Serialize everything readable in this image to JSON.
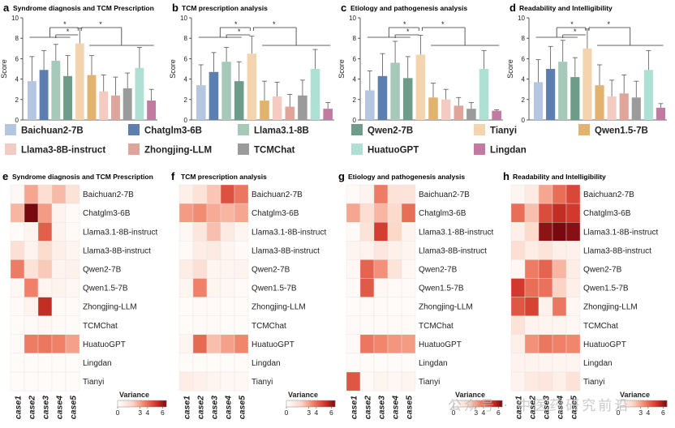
{
  "chart_data": {
    "legend": [
      {
        "name": "Baichuan2-7B",
        "color": "#b4c6e0"
      },
      {
        "name": "Chatglm3-6B",
        "color": "#5d7fb0"
      },
      {
        "name": "Llama3.1-8B",
        "color": "#a6c9b9"
      },
      {
        "name": "Llama3-8B-instruct",
        "color": "#f3cbc2"
      },
      {
        "name": "Zhongjing-LLM",
        "color": "#e0a59a"
      },
      {
        "name": "TCMChat",
        "color": "#9b9b9b"
      },
      {
        "name": "Qwen2-7B",
        "color": "#6e9c8a"
      },
      {
        "name": "Tianyi",
        "color": "#f4d4af"
      },
      {
        "name": "HuatuoGPT",
        "color": "#aee0d4"
      },
      {
        "name": "Qwen1.5-7B",
        "color": "#e2b36e"
      },
      {
        "name": "Lingdan",
        "color": "#c27aa0"
      }
    ],
    "bar_order": [
      "Baichuan2-7B",
      "Chatglm3-6B",
      "Llama3.1-8B",
      "Qwen2-7B",
      "Tianyi",
      "Qwen1.5-7B",
      "Llama3-8B-instruct",
      "Zhongjing-LLM",
      "TCMChat",
      "HuatuoGPT",
      "Lingdan"
    ],
    "bar_colors": [
      "#b4c6e0",
      "#5d7fb0",
      "#a6c9b9",
      "#6e9c8a",
      "#f4d4af",
      "#e2b36e",
      "#f3cbc2",
      "#e0a59a",
      "#9b9b9b",
      "#aee0d4",
      "#c27aa0"
    ],
    "bar_panels": [
      {
        "letter": "a",
        "title": "Syndrome diagnosis and TCM Prescription",
        "type": "bar",
        "ylabel": "Score",
        "ylim": [
          0,
          10
        ],
        "yticks": [
          "0",
          "2",
          "4",
          "6",
          "8",
          "10"
        ],
        "star": "*",
        "values": [
          3.8,
          4.9,
          5.8,
          4.3,
          7.5,
          4.4,
          2.8,
          2.4,
          3.1,
          5.1,
          1.9
        ],
        "errors": [
          2.4,
          1.9,
          1.6,
          2.0,
          1.5,
          1.9,
          1.6,
          1.8,
          1.5,
          2.0,
          1.1
        ]
      },
      {
        "letter": "b",
        "title": "TCM prescription analysis",
        "type": "bar",
        "ylabel": "Score",
        "ylim": [
          0,
          10
        ],
        "yticks": [
          "0",
          "2",
          "4",
          "6",
          "8",
          "10"
        ],
        "star": "*",
        "values": [
          3.4,
          4.7,
          5.7,
          3.8,
          6.5,
          1.9,
          2.3,
          1.3,
          2.4,
          5.0,
          1.1
        ],
        "errors": [
          2.0,
          1.9,
          1.4,
          1.9,
          1.7,
          1.9,
          1.4,
          1.2,
          1.5,
          1.9,
          0.6
        ]
      },
      {
        "letter": "c",
        "title": "Etiology and pathogenesis analysis",
        "type": "bar",
        "ylabel": "Score",
        "ylim": [
          0,
          10
        ],
        "yticks": [
          "0",
          "2",
          "4",
          "6",
          "8",
          "10"
        ],
        "star": "*",
        "values": [
          2.9,
          4.3,
          5.6,
          4.1,
          6.4,
          2.2,
          2.0,
          1.4,
          1.1,
          5.0,
          0.9
        ],
        "errors": [
          1.9,
          2.2,
          2.1,
          2.1,
          1.9,
          1.4,
          1.0,
          0.8,
          0.6,
          1.8,
          0.1
        ]
      },
      {
        "letter": "d",
        "title": "Readability and Intelligibility",
        "type": "bar",
        "ylabel": "Score",
        "ylim": [
          0,
          10
        ],
        "yticks": [
          "0",
          "2",
          "4",
          "6",
          "8",
          "10"
        ],
        "star": "*",
        "values": [
          3.7,
          5.0,
          5.7,
          4.2,
          7.0,
          3.4,
          2.3,
          2.6,
          2.2,
          4.9,
          1.2
        ],
        "errors": [
          2.2,
          2.2,
          2.1,
          1.9,
          1.9,
          2.0,
          1.6,
          1.8,
          1.6,
          1.9,
          0.4
        ]
      }
    ],
    "heatmap_rows": [
      "Baichuan2-7B",
      "Chatglm3-6B",
      "Llama3.1-8B-instruct",
      "Llama3-8B-instruct",
      "Qwen2-7B",
      "Qwen1.5-7B",
      "Zhongjing-LLM",
      "TCMChat",
      "HuatuoGPT",
      "Lingdan",
      "Tianyi"
    ],
    "heatmap_cols": [
      "case1",
      "case2",
      "case3",
      "case4",
      "case5"
    ],
    "colorbar": {
      "title": "Variance",
      "ticks": [
        "0",
        "3",
        "4",
        "6"
      ],
      "tick_values": [
        0,
        3,
        4,
        6
      ],
      "max": 6.5
    },
    "heatmaps": [
      {
        "letter": "e",
        "title": "Syndrome diagnosis and TCM Prescription",
        "type": "heatmap",
        "values": [
          [
            0.4,
            2.9,
            1.6,
            2.5,
            1.4
          ],
          [
            2.6,
            6.5,
            3.1,
            0.6,
            0.3
          ],
          [
            0.2,
            0.5,
            4.3,
            0.6,
            0.3
          ],
          [
            1.5,
            0.6,
            1.7,
            0.8,
            0.5
          ],
          [
            3.7,
            1.4,
            2.2,
            0.6,
            0.7
          ],
          [
            0.4,
            3.6,
            0.5,
            0.6,
            0.4
          ],
          [
            0.3,
            0.6,
            5.4,
            0.3,
            0.3
          ],
          [
            0.2,
            0.3,
            0.4,
            0.3,
            0.2
          ],
          [
            0.3,
            3.7,
            3.8,
            3.6,
            3.0
          ],
          [
            0.2,
            0.2,
            0.2,
            0.2,
            0.2
          ],
          [
            0.2,
            0.2,
            0.2,
            0.2,
            0.2
          ]
        ]
      },
      {
        "letter": "f",
        "title": "TCM prescription analysis",
        "type": "heatmap",
        "values": [
          [
            0.8,
            1.4,
            2.3,
            4.6,
            3.8
          ],
          [
            3.1,
            3.4,
            2.8,
            2.6,
            2.9
          ],
          [
            0.4,
            1.2,
            2.4,
            1.0,
            0.5
          ],
          [
            0.3,
            0.9,
            1.0,
            0.5,
            0.3
          ],
          [
            0.9,
            1.5,
            0.5,
            0.5,
            0.6
          ],
          [
            0.5,
            3.6,
            0.5,
            0.4,
            0.3
          ],
          [
            0.2,
            0.3,
            0.3,
            0.2,
            0.2
          ],
          [
            0.2,
            0.3,
            0.3,
            0.2,
            0.2
          ],
          [
            0.5,
            4.1,
            2.4,
            3.0,
            3.5
          ],
          [
            0.2,
            0.2,
            0.2,
            0.2,
            0.2
          ],
          [
            0.9,
            0.7,
            0.5,
            0.4,
            0.4
          ]
        ]
      },
      {
        "letter": "g",
        "title": "Etiology and pathogenesis analysis",
        "type": "heatmap",
        "values": [
          [
            0.3,
            0.6,
            3.7,
            1.4,
            1.3
          ],
          [
            2.9,
            1.6,
            2.6,
            1.8,
            4.0
          ],
          [
            0.3,
            1.4,
            5.0,
            1.9,
            0.6
          ],
          [
            0.5,
            0.6,
            1.2,
            0.7,
            0.5
          ],
          [
            0.4,
            4.2,
            3.3,
            1.3,
            0.4
          ],
          [
            0.3,
            4.4,
            0.4,
            0.3,
            0.3
          ],
          [
            0.2,
            0.3,
            0.3,
            0.2,
            0.2
          ],
          [
            0.3,
            0.3,
            0.3,
            0.3,
            0.3
          ],
          [
            0.3,
            3.8,
            3.5,
            3.2,
            3.1
          ],
          [
            0.2,
            0.2,
            0.2,
            0.2,
            0.2
          ],
          [
            4.5,
            0.3,
            0.5,
            0.4,
            0.5
          ]
        ]
      },
      {
        "letter": "h",
        "title": "Readability and Intelligibility",
        "type": "heatmap",
        "values": [
          [
            0.5,
            1.0,
            2.9,
            4.0,
            4.8
          ],
          [
            4.0,
            2.4,
            4.7,
            5.4,
            5.1
          ],
          [
            0.8,
            1.8,
            6.2,
            6.5,
            6.3
          ],
          [
            1.6,
            0.9,
            1.3,
            0.8,
            0.7
          ],
          [
            0.4,
            3.7,
            4.2,
            2.6,
            0.9
          ],
          [
            5.1,
            4.0,
            3.9,
            2.0,
            0.8
          ],
          [
            4.5,
            4.9,
            0.7,
            3.8,
            0.4
          ],
          [
            1.4,
            0.6,
            0.5,
            0.5,
            0.4
          ],
          [
            0.8,
            3.3,
            3.8,
            3.6,
            3.5
          ],
          [
            0.6,
            0.6,
            0.5,
            0.5,
            0.5
          ],
          [
            0.6,
            1.0,
            1.2,
            0.8,
            1.4
          ]
        ]
      }
    ]
  },
  "watermark": {
    "text": "公众号 · 中医药研究前沿",
    "icon": "wechat-icon"
  }
}
